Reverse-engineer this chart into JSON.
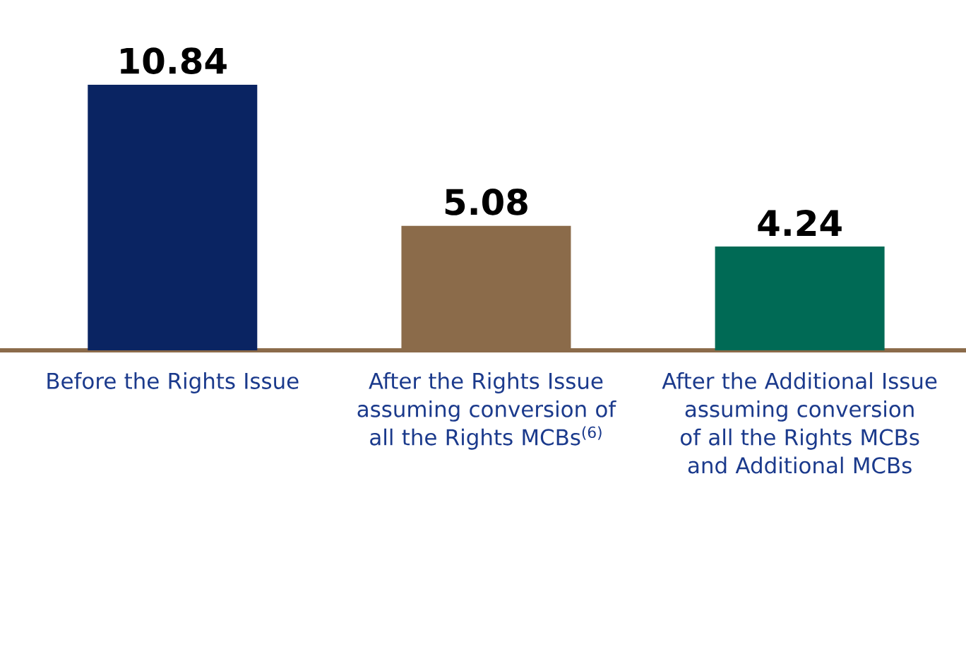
{
  "chart_data": {
    "type": "bar",
    "categories": [
      "Before the Rights Issue",
      "After the Rights Issue assuming conversion of all the Rights MCBs$^{(6)}$",
      "After the Additional Issue assuming conversion of all the Rights MCBs and Additional MCBs"
    ],
    "values": [
      10.84,
      5.08,
      4.24
    ],
    "colors": [
      "#0a2462",
      "#8b6b4a",
      "#006a55"
    ],
    "data_labels": true
  }
}
